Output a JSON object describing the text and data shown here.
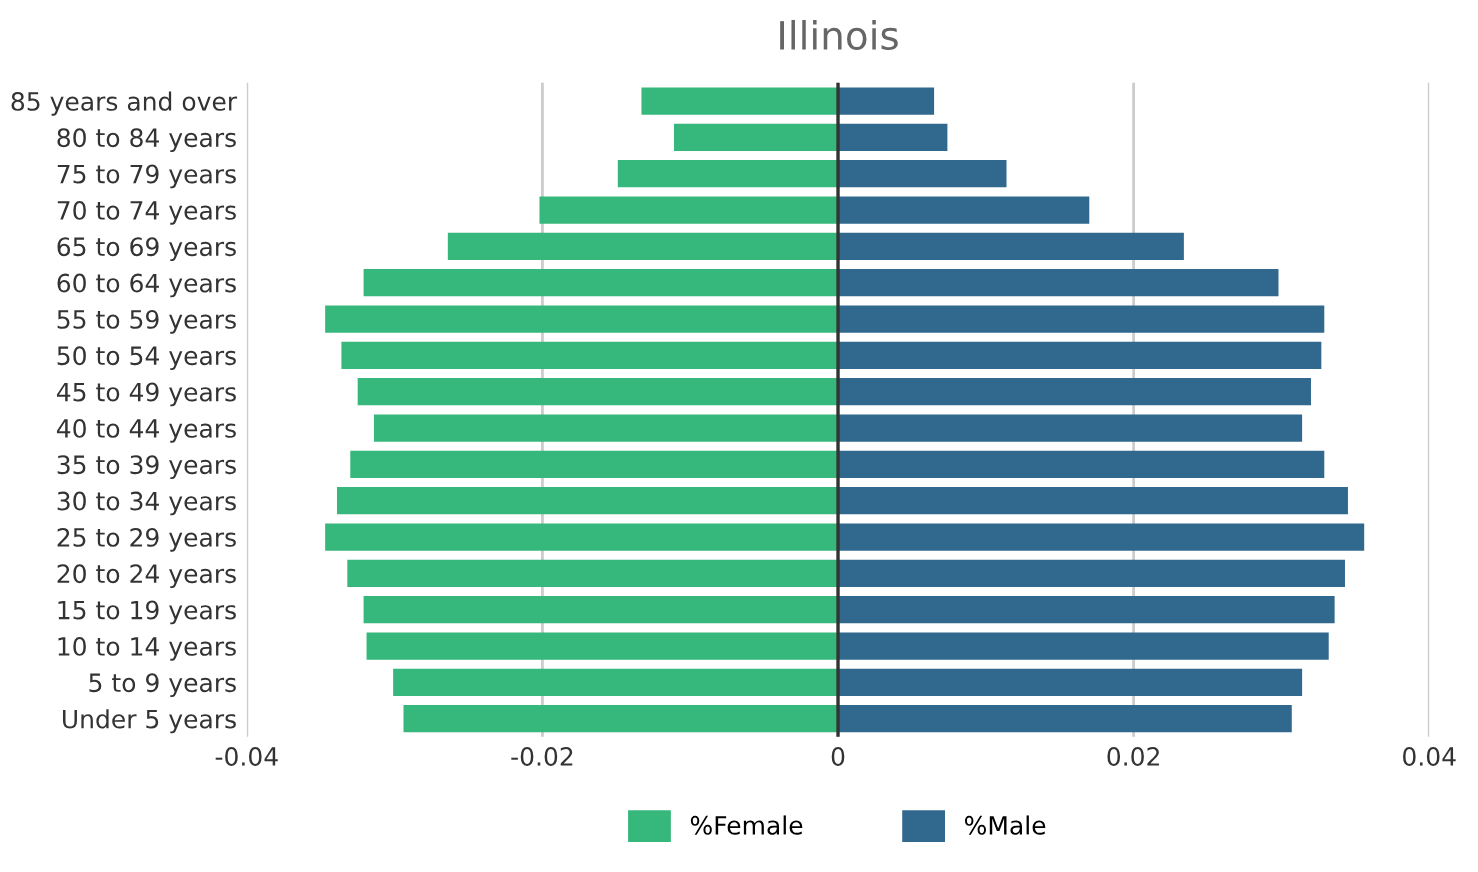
{
  "chart_data": {
    "type": "bar",
    "orientation": "horizontal",
    "title": "Illinois",
    "categories": [
      "85 years and over",
      "80 to 84 years",
      "75 to 79 years",
      "70 to 74 years",
      "65 to 69 years",
      "60 to 64 years",
      "55 to 59 years",
      "50 to 54 years",
      "45 to 49 years",
      "40 to 44 years",
      "35 to 39 years",
      "30 to 34 years",
      "25 to 29 years",
      "20 to 24 years",
      "15 to 19 years",
      "10 to 14 years",
      "5 to 9 years",
      "Under 5 years"
    ],
    "series": [
      {
        "name": "%Female",
        "color": "#36b77b",
        "values": [
          -0.0133,
          -0.0111,
          -0.0149,
          -0.0202,
          -0.0264,
          -0.0321,
          -0.0347,
          -0.0336,
          -0.0325,
          -0.0314,
          -0.033,
          -0.0339,
          -0.0347,
          -0.0332,
          -0.0321,
          -0.0319,
          -0.0301,
          -0.0294
        ]
      },
      {
        "name": "%Male",
        "color": "#31688e",
        "values": [
          0.0065,
          0.0074,
          0.0114,
          0.017,
          0.0234,
          0.0298,
          0.0329,
          0.0327,
          0.032,
          0.0314,
          0.0329,
          0.0345,
          0.0356,
          0.0343,
          0.0336,
          0.0332,
          0.0314,
          0.0307
        ]
      }
    ],
    "xlim": [
      -0.04,
      0.04
    ],
    "xticks": [
      -0.04,
      -0.02,
      0,
      0.02,
      0.04
    ],
    "stacked": true,
    "grid": "x",
    "legend": "bottom",
    "ref_lines": [
      {
        "axis": "x",
        "value": 0,
        "color": "#333333"
      }
    ]
  }
}
